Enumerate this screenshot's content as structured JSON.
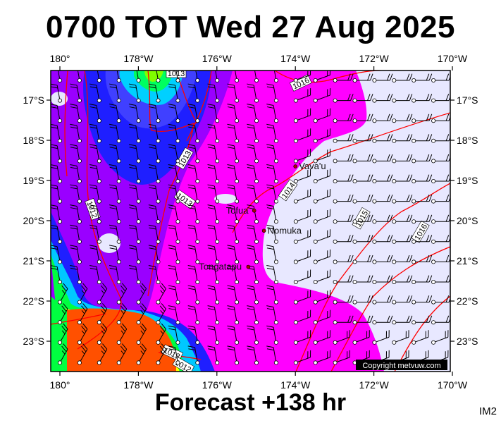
{
  "title": "0700 TOT Wed 27 Aug 2025",
  "subtitle": "Forecast +138 hr",
  "image_code": "IM2",
  "copyright": "Copyright metvuw.com",
  "axes": {
    "lon_ticks": [
      "180°",
      "178°W",
      "176°W",
      "174°W",
      "172°W",
      "170°W"
    ],
    "lat_ticks": [
      "17°S",
      "18°S",
      "19°S",
      "20°S",
      "21°S",
      "22°S",
      "23°S"
    ]
  },
  "places": [
    {
      "name": "Vava'u",
      "lon": -174.0,
      "lat": -18.65
    },
    {
      "name": "Tofua",
      "lon": -175.05,
      "lat": -19.75
    },
    {
      "name": "Nomuka",
      "lon": -174.8,
      "lat": -20.25
    },
    {
      "name": "Tongatapu",
      "lon": -175.2,
      "lat": -21.15
    }
  ],
  "isobar_labels": [
    "1013",
    "1013",
    "1013",
    "1012",
    "1013",
    "1012",
    "1014",
    "1015",
    "1016",
    "1016"
  ],
  "colors": {
    "calm": "#e8e8ff",
    "light": "#ff00ff",
    "moderate": "#8a00ff",
    "fresh": "#2020ff",
    "strong": "#00c8ff",
    "green": "#00ff40",
    "yellow": "#ffff00",
    "gale": "#ff4000",
    "isobar": "#ff0000"
  }
}
